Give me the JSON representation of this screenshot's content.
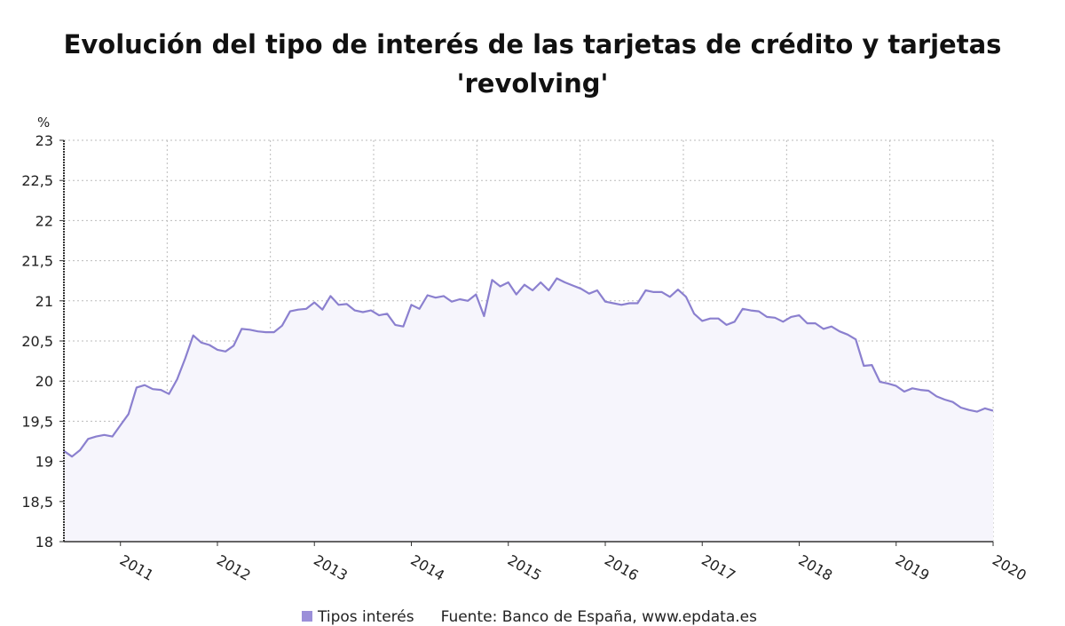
{
  "chart_data": {
    "type": "area",
    "title": "Evolución del tipo de interés de las tarjetas de crédito y tarjetas 'revolving'",
    "ylabel": "%",
    "xlabel": "",
    "ylim": [
      18,
      23
    ],
    "yticks": [
      18,
      18.5,
      19,
      19.5,
      20,
      20.5,
      21,
      21.5,
      22,
      22.5,
      23
    ],
    "ytick_labels": [
      "18",
      "18,5",
      "19",
      "19,5",
      "20",
      "20,5",
      "21",
      "21,5",
      "22",
      "22,5",
      "23"
    ],
    "xtick_labels": [
      "2011",
      "2012",
      "2013",
      "2014",
      "2015",
      "2016",
      "2017",
      "2018",
      "2019",
      "2020"
    ],
    "x_start": "2010-06",
    "x_end": "2020-01",
    "grid": true,
    "legend_position": "bottom",
    "colors": {
      "line": "#8b80cf",
      "fill": "#f6f5fc",
      "grid": "#bbbbbb"
    },
    "series": [
      {
        "name": "Tipos interés",
        "values": [
          19.13,
          19.06,
          19.14,
          19.28,
          19.31,
          19.33,
          19.31,
          19.45,
          19.59,
          19.92,
          19.95,
          19.9,
          19.89,
          19.84,
          20.02,
          20.28,
          20.57,
          20.48,
          20.45,
          20.39,
          20.37,
          20.44,
          20.65,
          20.64,
          20.62,
          20.61,
          20.61,
          20.69,
          20.87,
          20.89,
          20.9,
          20.98,
          20.89,
          21.06,
          20.95,
          20.96,
          20.88,
          20.86,
          20.88,
          20.82,
          20.84,
          20.7,
          20.68,
          20.95,
          20.9,
          21.07,
          21.04,
          21.06,
          20.99,
          21.02,
          21.0,
          21.08,
          20.81,
          21.26,
          21.18,
          21.23,
          21.08,
          21.2,
          21.13,
          21.23,
          21.13,
          21.28,
          21.23,
          21.19,
          21.15,
          21.09,
          21.13,
          20.99,
          20.97,
          20.95,
          20.97,
          20.97,
          21.13,
          21.11,
          21.11,
          21.05,
          21.14,
          21.05,
          20.84,
          20.75,
          20.78,
          20.78,
          20.7,
          20.74,
          20.9,
          20.88,
          20.87,
          20.8,
          20.79,
          20.74,
          20.8,
          20.82,
          20.72,
          20.72,
          20.65,
          20.68,
          20.62,
          20.58,
          20.52,
          20.19,
          20.2,
          19.99,
          19.97,
          19.94,
          19.87,
          19.91,
          19.89,
          19.88,
          19.81,
          19.77,
          19.74,
          19.67,
          19.64,
          19.62,
          19.66,
          19.63
        ]
      }
    ]
  },
  "legend": {
    "series_label": "Tipos interés",
    "source": "Fuente: Banco de España, www.epdata.es"
  }
}
